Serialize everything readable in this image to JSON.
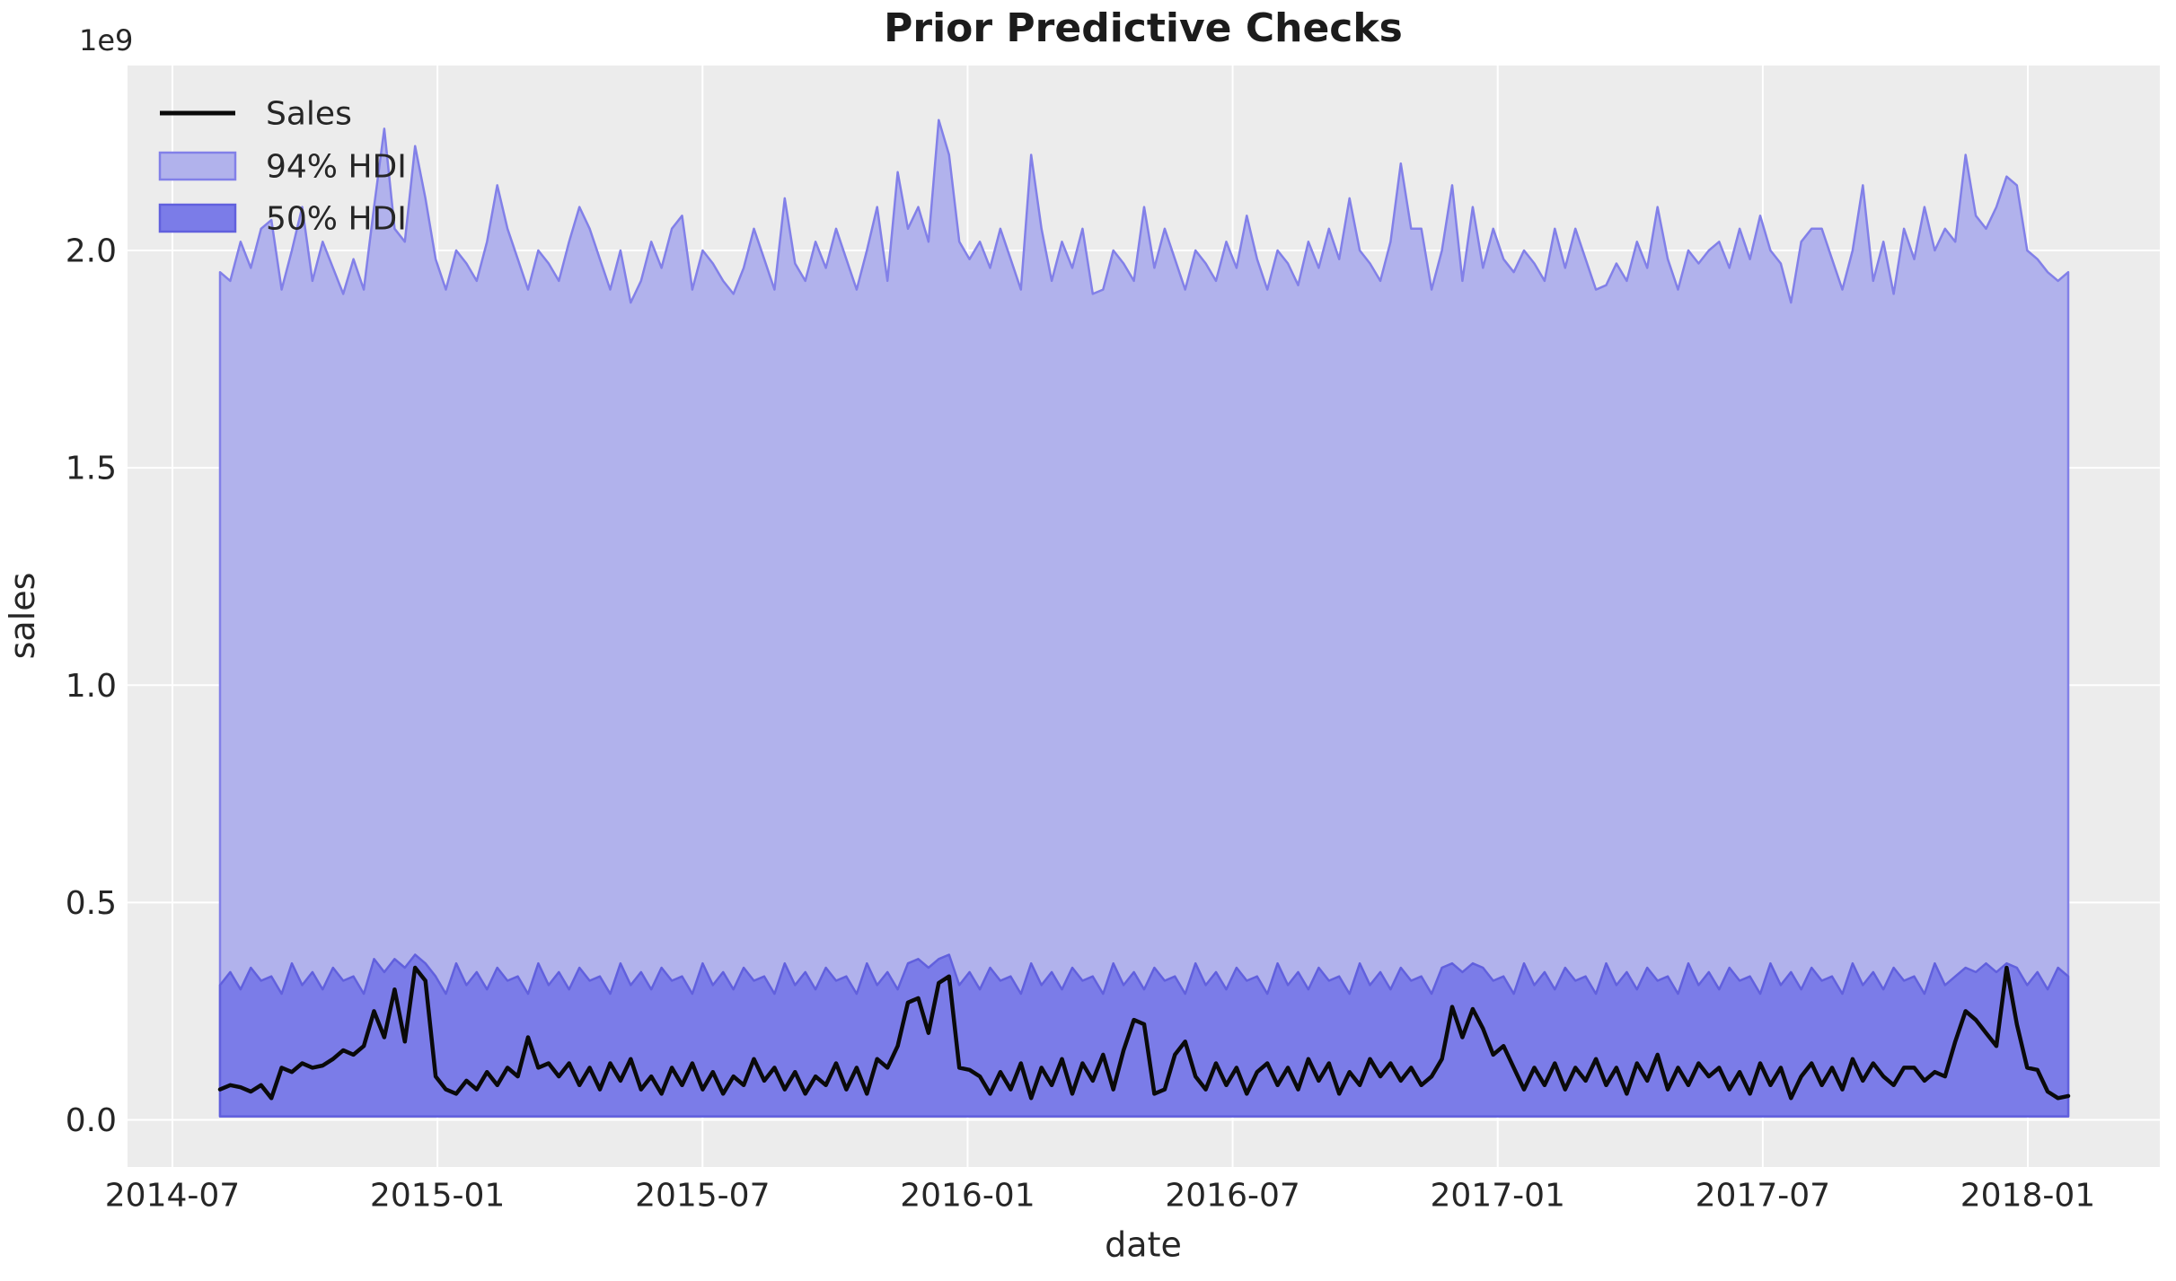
{
  "figure": {
    "background": "#ffffff",
    "plot_background": "#ececec",
    "grid_color": "#ffffff",
    "text_color": "#262626"
  },
  "chart_data": {
    "type": "area",
    "title": "Prior Predictive Checks",
    "xlabel": "date",
    "ylabel": "sales",
    "y_offset_text": "1e9",
    "unit_multiplier": "1e9",
    "grid": true,
    "legend_position": "upper left",
    "x_start": "2014-08",
    "x_end": "2018-01",
    "frequency": "weekly",
    "n_points": 181,
    "ylim": [
      -0.11,
      2.43
    ],
    "ytick_values": [
      0.0,
      0.5,
      1.0,
      1.5,
      2.0
    ],
    "ytick_labels": [
      "0.0",
      "0.5",
      "1.0",
      "1.5",
      "2.0"
    ],
    "xtick_labels": [
      "2014-07",
      "2015-01",
      "2015-07",
      "2016-01",
      "2016-07",
      "2017-01",
      "2017-07",
      "2018-01"
    ],
    "legend": {
      "items": [
        {
          "label": "Sales",
          "type": "line",
          "color": "#0a0a0a"
        },
        {
          "label": "94% HDI",
          "type": "patch",
          "fill": "#b1b2ec",
          "edge": "#8280e8"
        },
        {
          "label": "50% HDI",
          "type": "patch",
          "fill": "#7b7ce8",
          "edge": "#6160dd"
        }
      ]
    },
    "series": [
      {
        "name": "Sales",
        "type": "line",
        "color": "#0a0a0a",
        "values": [
          0.07,
          0.08,
          0.075,
          0.065,
          0.08,
          0.05,
          0.12,
          0.11,
          0.13,
          0.12,
          0.125,
          0.14,
          0.16,
          0.15,
          0.17,
          0.25,
          0.19,
          0.3,
          0.18,
          0.35,
          0.32,
          0.1,
          0.07,
          0.06,
          0.09,
          0.07,
          0.11,
          0.08,
          0.12,
          0.1,
          0.19,
          0.12,
          0.13,
          0.1,
          0.13,
          0.08,
          0.12,
          0.07,
          0.13,
          0.09,
          0.14,
          0.07,
          0.1,
          0.06,
          0.12,
          0.08,
          0.13,
          0.07,
          0.11,
          0.06,
          0.1,
          0.08,
          0.14,
          0.09,
          0.12,
          0.07,
          0.11,
          0.06,
          0.1,
          0.08,
          0.13,
          0.07,
          0.12,
          0.06,
          0.14,
          0.12,
          0.17,
          0.27,
          0.28,
          0.2,
          0.315,
          0.33,
          0.12,
          0.115,
          0.1,
          0.06,
          0.11,
          0.07,
          0.13,
          0.05,
          0.12,
          0.08,
          0.14,
          0.06,
          0.13,
          0.09,
          0.15,
          0.07,
          0.16,
          0.23,
          0.22,
          0.06,
          0.07,
          0.15,
          0.18,
          0.1,
          0.07,
          0.13,
          0.08,
          0.12,
          0.06,
          0.11,
          0.13,
          0.08,
          0.12,
          0.07,
          0.14,
          0.09,
          0.13,
          0.06,
          0.11,
          0.08,
          0.14,
          0.1,
          0.13,
          0.09,
          0.12,
          0.08,
          0.1,
          0.14,
          0.26,
          0.19,
          0.255,
          0.21,
          0.15,
          0.17,
          0.12,
          0.07,
          0.12,
          0.08,
          0.13,
          0.07,
          0.12,
          0.09,
          0.14,
          0.08,
          0.12,
          0.06,
          0.13,
          0.09,
          0.15,
          0.07,
          0.12,
          0.08,
          0.13,
          0.1,
          0.12,
          0.07,
          0.11,
          0.06,
          0.13,
          0.08,
          0.12,
          0.05,
          0.1,
          0.13,
          0.08,
          0.12,
          0.07,
          0.14,
          0.09,
          0.13,
          0.1,
          0.08,
          0.12,
          0.12,
          0.09,
          0.11,
          0.1,
          0.18,
          0.25,
          0.23,
          0.2,
          0.17,
          0.35,
          0.22,
          0.12,
          0.115,
          0.065,
          0.05,
          0.055
        ]
      },
      {
        "name": "94% HDI",
        "type": "band",
        "fill": "#b1b2ec",
        "edge": "#8280e8",
        "bottom": 0.008,
        "top": [
          1.95,
          1.93,
          2.02,
          1.96,
          2.05,
          2.07,
          1.91,
          2.0,
          2.1,
          1.93,
          2.02,
          1.96,
          1.9,
          1.98,
          1.91,
          2.1,
          2.28,
          2.05,
          2.02,
          2.24,
          2.12,
          1.98,
          1.91,
          2.0,
          1.97,
          1.93,
          2.02,
          2.15,
          2.05,
          1.98,
          1.91,
          2.0,
          1.97,
          1.93,
          2.02,
          2.1,
          2.05,
          1.98,
          1.91,
          2.0,
          1.88,
          1.93,
          2.02,
          1.96,
          2.05,
          2.08,
          1.91,
          2.0,
          1.97,
          1.93,
          1.9,
          1.96,
          2.05,
          1.98,
          1.91,
          2.12,
          1.97,
          1.93,
          2.02,
          1.96,
          2.05,
          1.98,
          1.91,
          2.0,
          2.1,
          1.93,
          2.18,
          2.05,
          2.1,
          2.02,
          2.3,
          2.22,
          2.02,
          1.98,
          2.02,
          1.96,
          2.05,
          1.98,
          1.91,
          2.22,
          2.05,
          1.93,
          2.02,
          1.96,
          2.05,
          1.9,
          1.91,
          2.0,
          1.97,
          1.93,
          2.1,
          1.96,
          2.05,
          1.98,
          1.91,
          2.0,
          1.97,
          1.93,
          2.02,
          1.96,
          2.08,
          1.98,
          1.91,
          2.0,
          1.97,
          1.92,
          2.02,
          1.96,
          2.05,
          1.98,
          2.12,
          2.0,
          1.97,
          1.93,
          2.02,
          2.2,
          2.05,
          2.05,
          1.91,
          2.0,
          2.15,
          1.93,
          2.1,
          1.96,
          2.05,
          1.98,
          1.95,
          2.0,
          1.97,
          1.93,
          2.05,
          1.96,
          2.05,
          1.98,
          1.91,
          1.92,
          1.97,
          1.93,
          2.02,
          1.96,
          2.1,
          1.98,
          1.91,
          2.0,
          1.97,
          2.0,
          2.02,
          1.96,
          2.05,
          1.98,
          2.08,
          2.0,
          1.97,
          1.88,
          2.02,
          2.05,
          2.05,
          1.98,
          1.91,
          2.0,
          2.15,
          1.93,
          2.02,
          1.9,
          2.05,
          1.98,
          2.1,
          2.0,
          2.05,
          2.02,
          2.22,
          2.08,
          2.05,
          2.1,
          2.17,
          2.15,
          2.0,
          1.98,
          1.95,
          1.93,
          1.95
        ]
      },
      {
        "name": "50% HDI",
        "type": "band",
        "fill": "#7b7ce8",
        "edge": "#6160dd",
        "bottom": 0.008,
        "top": [
          0.31,
          0.34,
          0.3,
          0.35,
          0.32,
          0.33,
          0.29,
          0.36,
          0.31,
          0.34,
          0.3,
          0.35,
          0.32,
          0.33,
          0.29,
          0.37,
          0.34,
          0.37,
          0.35,
          0.38,
          0.36,
          0.33,
          0.29,
          0.36,
          0.31,
          0.34,
          0.3,
          0.35,
          0.32,
          0.33,
          0.29,
          0.36,
          0.31,
          0.34,
          0.3,
          0.35,
          0.32,
          0.33,
          0.29,
          0.36,
          0.31,
          0.34,
          0.3,
          0.35,
          0.32,
          0.33,
          0.29,
          0.36,
          0.31,
          0.34,
          0.3,
          0.35,
          0.32,
          0.33,
          0.29,
          0.36,
          0.31,
          0.34,
          0.3,
          0.35,
          0.32,
          0.33,
          0.29,
          0.36,
          0.31,
          0.34,
          0.3,
          0.36,
          0.37,
          0.35,
          0.37,
          0.38,
          0.31,
          0.34,
          0.3,
          0.35,
          0.32,
          0.33,
          0.29,
          0.36,
          0.31,
          0.34,
          0.3,
          0.35,
          0.32,
          0.33,
          0.29,
          0.36,
          0.31,
          0.34,
          0.3,
          0.35,
          0.32,
          0.33,
          0.29,
          0.36,
          0.31,
          0.34,
          0.3,
          0.35,
          0.32,
          0.33,
          0.29,
          0.36,
          0.31,
          0.34,
          0.3,
          0.35,
          0.32,
          0.33,
          0.29,
          0.36,
          0.31,
          0.34,
          0.3,
          0.35,
          0.32,
          0.33,
          0.29,
          0.35,
          0.36,
          0.34,
          0.36,
          0.35,
          0.32,
          0.33,
          0.29,
          0.36,
          0.31,
          0.34,
          0.3,
          0.35,
          0.32,
          0.33,
          0.29,
          0.36,
          0.31,
          0.34,
          0.3,
          0.35,
          0.32,
          0.33,
          0.29,
          0.36,
          0.31,
          0.34,
          0.3,
          0.35,
          0.32,
          0.33,
          0.29,
          0.36,
          0.31,
          0.34,
          0.3,
          0.35,
          0.32,
          0.33,
          0.29,
          0.36,
          0.31,
          0.34,
          0.3,
          0.35,
          0.32,
          0.33,
          0.29,
          0.36,
          0.31,
          0.33,
          0.35,
          0.34,
          0.36,
          0.34,
          0.36,
          0.35,
          0.31,
          0.34,
          0.3,
          0.35,
          0.33
        ]
      }
    ]
  }
}
